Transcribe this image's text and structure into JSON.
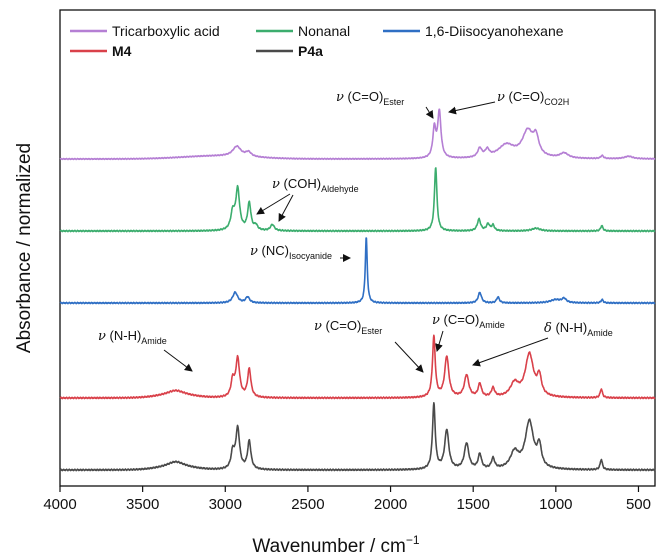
{
  "chart_data": {
    "type": "line",
    "xlabel": "Wavenumber / cm",
    "xlabel_sup": "−1",
    "ylabel": "Absorbance / normalized",
    "xlim": [
      4000,
      400
    ],
    "x_reversed": true,
    "xticks": [
      {
        "value": 4000,
        "label": "4000"
      },
      {
        "value": 3500,
        "label": "3500"
      },
      {
        "value": 3000,
        "label": "3000"
      },
      {
        "value": 2500,
        "label": "2500"
      },
      {
        "value": 2000,
        "label": "2000"
      },
      {
        "value": 1500,
        "label": "1500"
      },
      {
        "value": 1000,
        "label": "1000"
      },
      {
        "value": 500,
        "label": "500"
      }
    ],
    "yticks": "none",
    "grid": false,
    "legend": {
      "placement": "top-left",
      "entries": [
        {
          "label": "Tricarboxylic acid",
          "color": "#b57fd4",
          "bold": false
        },
        {
          "label": "Nonanal",
          "color": "#3cad6e",
          "bold": false
        },
        {
          "label": "1,6-Diisocyanohexane",
          "color": "#2f6fc4",
          "bold": false
        },
        {
          "label": "M4",
          "color": "#d9414a",
          "bold": true
        },
        {
          "label": "P4a",
          "color": "#4a4a4a",
          "bold": true
        }
      ]
    },
    "series": [
      {
        "name": "Tricarboxylic acid",
        "color": "#b57fd4",
        "baseline": 0.0,
        "height": 1.0,
        "peaks": [
          {
            "x": 2930,
            "w": 30,
            "h": 0.2
          },
          {
            "x": 2860,
            "w": 20,
            "h": 0.09
          },
          {
            "x": 1735,
            "w": 11,
            "h": 0.58
          },
          {
            "x": 1705,
            "w": 12,
            "h": 0.92
          },
          {
            "x": 1460,
            "w": 15,
            "h": 0.18
          },
          {
            "x": 1415,
            "w": 15,
            "h": 0.14
          },
          {
            "x": 1300,
            "w": 60,
            "h": 0.26
          },
          {
            "x": 1170,
            "w": 40,
            "h": 0.52
          },
          {
            "x": 1120,
            "w": 20,
            "h": 0.34
          },
          {
            "x": 950,
            "w": 30,
            "h": 0.1
          },
          {
            "x": 720,
            "w": 10,
            "h": 0.06
          },
          {
            "x": 560,
            "w": 30,
            "h": 0.05
          }
        ],
        "broad": [
          {
            "x": 3050,
            "w": 300,
            "h": 0.06
          }
        ]
      },
      {
        "name": "Nonanal",
        "color": "#3cad6e",
        "baseline": 0.0,
        "height": 1.0,
        "peaks": [
          {
            "x": 2955,
            "w": 14,
            "h": 0.25
          },
          {
            "x": 2925,
            "w": 14,
            "h": 0.6
          },
          {
            "x": 2855,
            "w": 12,
            "h": 0.4
          },
          {
            "x": 2815,
            "w": 12,
            "h": 0.07
          },
          {
            "x": 2715,
            "w": 14,
            "h": 0.09
          },
          {
            "x": 1727,
            "w": 9,
            "h": 0.94
          },
          {
            "x": 1465,
            "w": 12,
            "h": 0.17
          },
          {
            "x": 1410,
            "w": 12,
            "h": 0.1
          },
          {
            "x": 1380,
            "w": 10,
            "h": 0.08
          },
          {
            "x": 1120,
            "w": 30,
            "h": 0.04
          },
          {
            "x": 722,
            "w": 8,
            "h": 0.08
          }
        ],
        "broad": []
      },
      {
        "name": "1,6-Diisocyanohexane",
        "color": "#2f6fc4",
        "baseline": 0.0,
        "height": 1.0,
        "peaks": [
          {
            "x": 2940,
            "w": 18,
            "h": 0.16
          },
          {
            "x": 2865,
            "w": 14,
            "h": 0.09
          },
          {
            "x": 2147,
            "w": 7,
            "h": 1.0
          },
          {
            "x": 1460,
            "w": 12,
            "h": 0.16
          },
          {
            "x": 1350,
            "w": 10,
            "h": 0.09
          },
          {
            "x": 1000,
            "w": 40,
            "h": 0.05
          },
          {
            "x": 950,
            "w": 15,
            "h": 0.06
          },
          {
            "x": 720,
            "w": 8,
            "h": 0.05
          }
        ],
        "broad": []
      },
      {
        "name": "M4",
        "color": "#d9414a",
        "baseline": 0.0,
        "height": 1.0,
        "peaks": [
          {
            "x": 3300,
            "w": 60,
            "h": 0.06
          },
          {
            "x": 2955,
            "w": 12,
            "h": 0.22
          },
          {
            "x": 2925,
            "w": 14,
            "h": 0.52
          },
          {
            "x": 2855,
            "w": 12,
            "h": 0.38
          },
          {
            "x": 1738,
            "w": 10,
            "h": 0.82
          },
          {
            "x": 1660,
            "w": 15,
            "h": 0.55
          },
          {
            "x": 1540,
            "w": 16,
            "h": 0.3
          },
          {
            "x": 1460,
            "w": 12,
            "h": 0.18
          },
          {
            "x": 1380,
            "w": 12,
            "h": 0.12
          },
          {
            "x": 1250,
            "w": 30,
            "h": 0.18
          },
          {
            "x": 1160,
            "w": 30,
            "h": 0.58
          },
          {
            "x": 1100,
            "w": 15,
            "h": 0.25
          },
          {
            "x": 725,
            "w": 8,
            "h": 0.12
          }
        ],
        "broad": [
          {
            "x": 3300,
            "w": 150,
            "h": 0.04
          }
        ]
      },
      {
        "name": "P4a",
        "color": "#4a4a4a",
        "baseline": 0.0,
        "height": 1.0,
        "peaks": [
          {
            "x": 3300,
            "w": 60,
            "h": 0.07
          },
          {
            "x": 2955,
            "w": 12,
            "h": 0.22
          },
          {
            "x": 2925,
            "w": 14,
            "h": 0.55
          },
          {
            "x": 2855,
            "w": 12,
            "h": 0.38
          },
          {
            "x": 1738,
            "w": 10,
            "h": 0.88
          },
          {
            "x": 1660,
            "w": 15,
            "h": 0.53
          },
          {
            "x": 1540,
            "w": 16,
            "h": 0.35
          },
          {
            "x": 1460,
            "w": 12,
            "h": 0.2
          },
          {
            "x": 1380,
            "w": 12,
            "h": 0.14
          },
          {
            "x": 1250,
            "w": 30,
            "h": 0.22
          },
          {
            "x": 1160,
            "w": 30,
            "h": 0.64
          },
          {
            "x": 1100,
            "w": 15,
            "h": 0.28
          },
          {
            "x": 725,
            "w": 8,
            "h": 0.14
          }
        ],
        "broad": [
          {
            "x": 3300,
            "w": 150,
            "h": 0.04
          }
        ]
      }
    ],
    "annotations": [
      {
        "id": "ester-acid",
        "prefix": "ν",
        "main": " (C=O)",
        "sub": "Ester"
      },
      {
        "id": "co2h",
        "prefix": "ν",
        "main": " (C=O)",
        "sub": "CO2H"
      },
      {
        "id": "aldehyde",
        "prefix": "ν",
        "main": " (COH)",
        "sub": "Aldehyde"
      },
      {
        "id": "isocyanide",
        "prefix": "ν",
        "main": " (NC)",
        "sub": "Isocyanide"
      },
      {
        "id": "nh-amide",
        "prefix": "ν",
        "main": " (N-H)",
        "sub": "Amide"
      },
      {
        "id": "ester-m4",
        "prefix": "ν",
        "main": " (C=O)",
        "sub": "Ester"
      },
      {
        "id": "co-amide",
        "prefix": "ν",
        "main": " (C=O)",
        "sub": "Amide"
      },
      {
        "id": "delta-nh",
        "prefix": "δ",
        "main": " (N-H)",
        "sub": "Amide"
      }
    ]
  }
}
